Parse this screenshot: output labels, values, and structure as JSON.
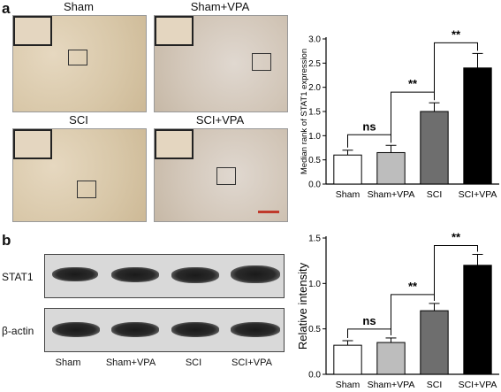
{
  "panel_a": {
    "letter": "a",
    "micrographs": [
      {
        "label": "Sham"
      },
      {
        "label": "Sham+VPA"
      },
      {
        "label": "SCI"
      },
      {
        "label": "SCI+VPA"
      }
    ]
  },
  "panel_b": {
    "letter": "b",
    "blot_rows": [
      "STAT1",
      "β-actin"
    ],
    "lanes": [
      "Sham",
      "Sham+VPA",
      "SCI",
      "SCI+VPA"
    ]
  },
  "colors": {
    "bar_fills": [
      "#ffffff",
      "#bdbdbd",
      "#6e6e6e",
      "#000000"
    ],
    "scalebar": "#c0392b"
  },
  "chart_data": [
    {
      "type": "bar",
      "categories": [
        "Sham",
        "Sham+VPA",
        "SCI",
        "SCI+VPA"
      ],
      "values": [
        0.6,
        0.65,
        1.5,
        2.4
      ],
      "errors": [
        0.1,
        0.15,
        0.18,
        0.3
      ],
      "ylabel": "Median rank of STAT1 expression",
      "ylim": [
        0,
        3.0
      ],
      "yticks": [
        "0.0",
        "0.5",
        "1.0",
        "1.5",
        "2.0",
        "2.5",
        "3.0"
      ],
      "significance": [
        {
          "from": 0,
          "to": 1,
          "label": "ns"
        },
        {
          "from": 1,
          "to": 2,
          "label": "**"
        },
        {
          "from": 2,
          "to": 3,
          "label": "**"
        }
      ]
    },
    {
      "type": "bar",
      "categories": [
        "Sham",
        "Sham+VPA",
        "SCI",
        "SCI+VPA"
      ],
      "values": [
        0.32,
        0.35,
        0.7,
        1.2
      ],
      "errors": [
        0.05,
        0.05,
        0.08,
        0.12
      ],
      "ylabel": "Relative intensity",
      "ylim": [
        0,
        1.5
      ],
      "yticks": [
        "0.0",
        "0.5",
        "1.0",
        "1.5"
      ],
      "significance": [
        {
          "from": 0,
          "to": 1,
          "label": "ns"
        },
        {
          "from": 1,
          "to": 2,
          "label": "**"
        },
        {
          "from": 2,
          "to": 3,
          "label": "**"
        }
      ]
    }
  ]
}
